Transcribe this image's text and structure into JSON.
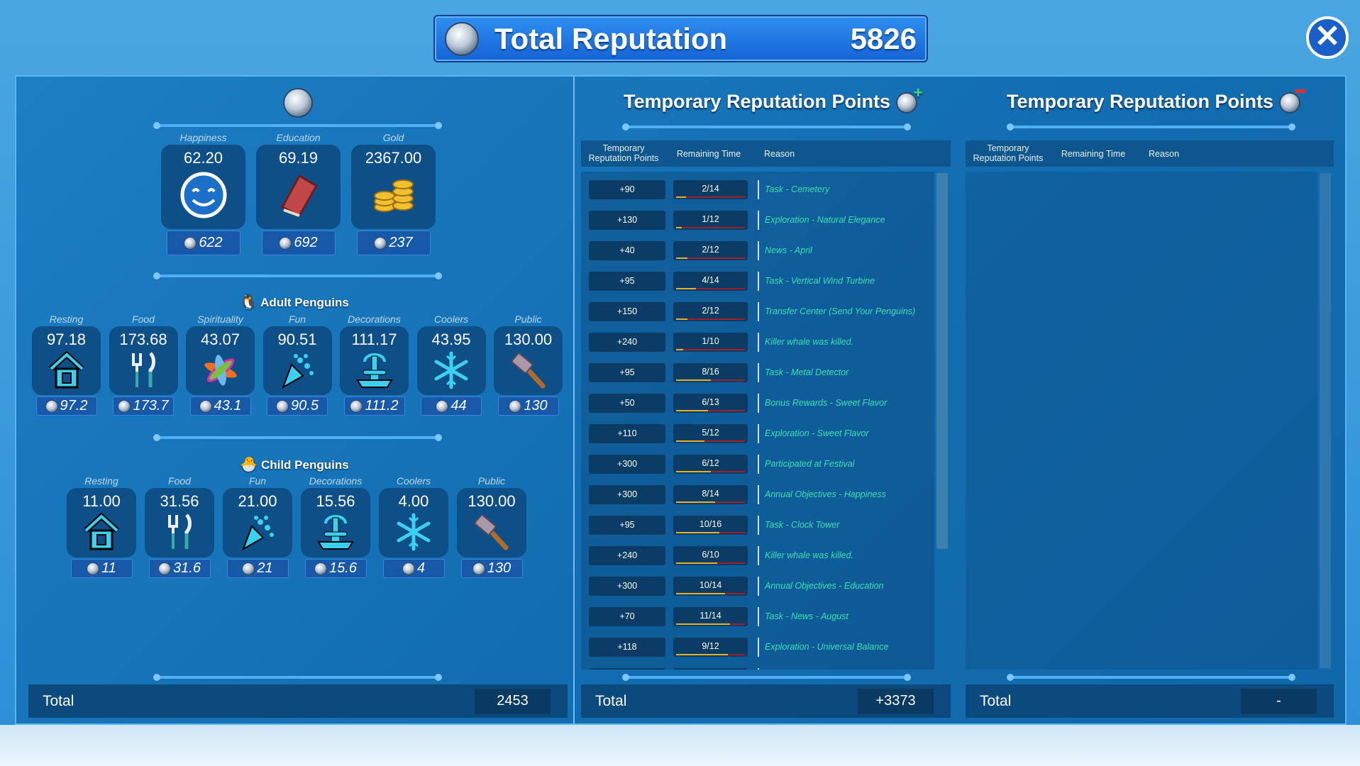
{
  "header": {
    "title": "Total Reputation",
    "value": "5826",
    "close_icon": "close-icon"
  },
  "colors": {
    "accent": "#1563d6",
    "reason_text": "#38e0b0",
    "progress_fill": "#e4b226",
    "progress_track": "#a0202a"
  },
  "left": {
    "stats": [
      {
        "label": "Happiness",
        "value": "62.20",
        "rep": "622",
        "icon": "smiley-icon"
      },
      {
        "label": "Education",
        "value": "69.19",
        "rep": "692",
        "icon": "book-icon"
      },
      {
        "label": "Gold",
        "value": "2367.00",
        "rep": "237",
        "icon": "gold-coins-icon"
      }
    ],
    "adult_title": "Adult Penguins",
    "adult": [
      {
        "label": "Resting",
        "value": "97.18",
        "rep": "97.2",
        "icon": "house"
      },
      {
        "label": "Food",
        "value": "173.68",
        "rep": "173.7",
        "icon": "fork"
      },
      {
        "label": "Spirituality",
        "value": "43.07",
        "rep": "43.1",
        "icon": "flower"
      },
      {
        "label": "Fun",
        "value": "90.51",
        "rep": "90.5",
        "icon": "confetti"
      },
      {
        "label": "Decorations",
        "value": "111.17",
        "rep": "111.2",
        "icon": "fountain"
      },
      {
        "label": "Coolers",
        "value": "43.95",
        "rep": "44",
        "icon": "snow"
      },
      {
        "label": "Public",
        "value": "130.00",
        "rep": "130",
        "icon": "hammer"
      }
    ],
    "child_title": "Child Penguins",
    "child": [
      {
        "label": "Resting",
        "value": "11.00",
        "rep": "11",
        "icon": "house"
      },
      {
        "label": "Food",
        "value": "31.56",
        "rep": "31.6",
        "icon": "fork"
      },
      {
        "label": "Fun",
        "value": "21.00",
        "rep": "21",
        "icon": "confetti"
      },
      {
        "label": "Decorations",
        "value": "15.56",
        "rep": "15.6",
        "icon": "fountain"
      },
      {
        "label": "Coolers",
        "value": "4.00",
        "rep": "4",
        "icon": "snow"
      },
      {
        "label": "Public",
        "value": "130.00",
        "rep": "130",
        "icon": "hammer"
      }
    ],
    "total_label": "Total",
    "total_value": "2453"
  },
  "positive": {
    "title": "Temporary Reputation Points",
    "columns": [
      "Temporary Reputation Points",
      "Remaining Time",
      "Reason"
    ],
    "rows": [
      {
        "points": "+90",
        "time": "2/14",
        "elapsed": 2,
        "duration": 14,
        "reason": "Task - Cemetery"
      },
      {
        "points": "+130",
        "time": "1/12",
        "elapsed": 1,
        "duration": 12,
        "reason": "Exploration - Natural Elegance"
      },
      {
        "points": "+40",
        "time": "2/12",
        "elapsed": 2,
        "duration": 12,
        "reason": "News - April"
      },
      {
        "points": "+95",
        "time": "4/14",
        "elapsed": 4,
        "duration": 14,
        "reason": "Task - Vertical Wind Turbine"
      },
      {
        "points": "+150",
        "time": "2/12",
        "elapsed": 2,
        "duration": 12,
        "reason": "Transfer Center (Send Your Penguins)"
      },
      {
        "points": "+240",
        "time": "1/10",
        "elapsed": 1,
        "duration": 10,
        "reason": "Killer whale was killed."
      },
      {
        "points": "+95",
        "time": "8/16",
        "elapsed": 8,
        "duration": 16,
        "reason": "Task - Metal Detector"
      },
      {
        "points": "+50",
        "time": "6/13",
        "elapsed": 6,
        "duration": 13,
        "reason": "Bonus Rewards - Sweet Flavor"
      },
      {
        "points": "+110",
        "time": "5/12",
        "elapsed": 5,
        "duration": 12,
        "reason": "Exploration - Sweet Flavor"
      },
      {
        "points": "+300",
        "time": "6/12",
        "elapsed": 6,
        "duration": 12,
        "reason": "Participated at Festival"
      },
      {
        "points": "+300",
        "time": "8/14",
        "elapsed": 8,
        "duration": 14,
        "reason": "Annual Objectives - Happiness"
      },
      {
        "points": "+95",
        "time": "10/16",
        "elapsed": 10,
        "duration": 16,
        "reason": "Task - Clock Tower"
      },
      {
        "points": "+240",
        "time": "6/10",
        "elapsed": 6,
        "duration": 10,
        "reason": "Killer whale was killed."
      },
      {
        "points": "+300",
        "time": "10/14",
        "elapsed": 10,
        "duration": 14,
        "reason": "Annual Objectives - Education"
      },
      {
        "points": "+70",
        "time": "11/14",
        "elapsed": 11,
        "duration": 14,
        "reason": "Task - News - August"
      },
      {
        "points": "+118",
        "time": "9/12",
        "elapsed": 9,
        "duration": 12,
        "reason": "Exploration - Universal Balance"
      }
    ],
    "total_label": "Total",
    "total_value": "+3373"
  },
  "negative": {
    "title": "Temporary Reputation Points",
    "columns": [
      "Temporary Reputation Points",
      "Remaining Time",
      "Reason"
    ],
    "total_label": "Total",
    "total_value": "-"
  }
}
